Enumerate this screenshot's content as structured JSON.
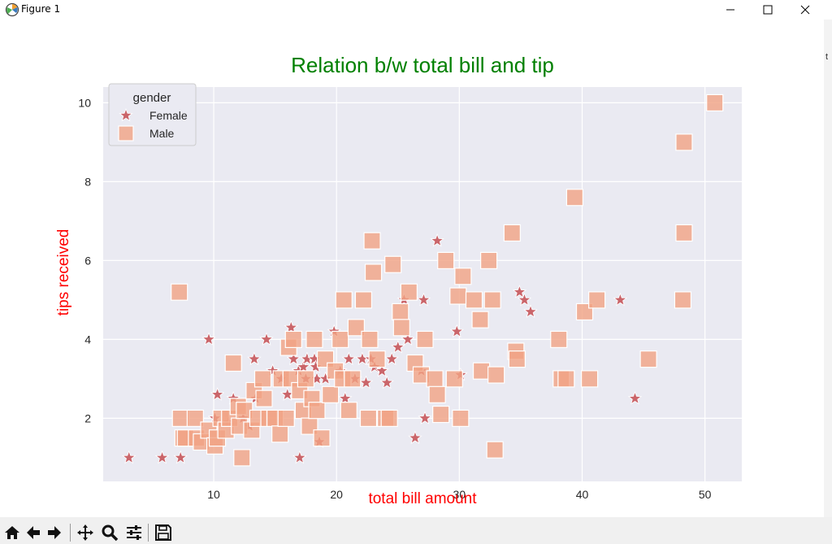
{
  "window": {
    "title": "Figure 1",
    "side_text": "t"
  },
  "chart_data": {
    "type": "scatter",
    "title": "Relation b/w total bill and tip",
    "xlabel": "total bill amount",
    "ylabel": "tips received",
    "xlim": [
      1,
      53
    ],
    "ylim": [
      0.4,
      10.4
    ],
    "xticks": [
      10,
      20,
      30,
      40,
      50
    ],
    "yticks": [
      2,
      4,
      6,
      8,
      10
    ],
    "grid": true,
    "legend": {
      "title": "gender",
      "position": "top-left"
    },
    "colors": {
      "title": "#008000",
      "axis_labels": "#ff0000",
      "plot_bg": "#eaeaf2",
      "grid": "#ffffff",
      "female": "#c44e52",
      "male": "#f1a283"
    },
    "series": [
      {
        "name": "Female",
        "marker": "star",
        "points": [
          [
            3.1,
            1.0
          ],
          [
            5.8,
            1.0
          ],
          [
            7.3,
            1.0
          ],
          [
            9.6,
            4.0
          ],
          [
            10.3,
            2.6
          ],
          [
            10.1,
            2.0
          ],
          [
            11.2,
            1.9
          ],
          [
            11.6,
            2.5
          ],
          [
            12.4,
            2.0
          ],
          [
            12.9,
            1.8
          ],
          [
            13.3,
            3.5
          ],
          [
            13.4,
            2.5
          ],
          [
            14.3,
            4.0
          ],
          [
            14.8,
            3.2
          ],
          [
            15.5,
            3.0
          ],
          [
            16.0,
            2.6
          ],
          [
            16.3,
            4.3
          ],
          [
            16.5,
            3.5
          ],
          [
            16.9,
            3.2
          ],
          [
            17.3,
            3.3
          ],
          [
            17.0,
            1.0
          ],
          [
            17.6,
            3.5
          ],
          [
            17.5,
            3.0
          ],
          [
            18.2,
            3.5
          ],
          [
            18.3,
            3.3
          ],
          [
            18.6,
            1.4
          ],
          [
            18.4,
            3.0
          ],
          [
            19.1,
            3.0
          ],
          [
            19.8,
            4.2
          ],
          [
            20.3,
            3.2
          ],
          [
            20.7,
            2.5
          ],
          [
            21.0,
            3.5
          ],
          [
            21.5,
            3.0
          ],
          [
            22.1,
            3.5
          ],
          [
            22.4,
            2.9
          ],
          [
            22.8,
            3.5
          ],
          [
            23.1,
            3.3
          ],
          [
            23.7,
            3.2
          ],
          [
            24.1,
            2.9
          ],
          [
            24.5,
            3.5
          ],
          [
            25.0,
            3.8
          ],
          [
            25.5,
            5.0
          ],
          [
            25.8,
            4.0
          ],
          [
            26.4,
            1.5
          ],
          [
            26.9,
            3.2
          ],
          [
            27.1,
            5.0
          ],
          [
            27.2,
            2.0
          ],
          [
            28.2,
            6.5
          ],
          [
            29.8,
            4.2
          ],
          [
            30.1,
            3.1
          ],
          [
            34.9,
            5.2
          ],
          [
            35.3,
            5.0
          ],
          [
            35.8,
            4.7
          ],
          [
            43.1,
            5.0
          ],
          [
            44.3,
            2.5
          ]
        ]
      },
      {
        "name": "Male",
        "marker": "square",
        "points": [
          [
            7.2,
            5.2
          ],
          [
            7.3,
            2.0
          ],
          [
            7.5,
            1.5
          ],
          [
            7.7,
            1.5
          ],
          [
            8.5,
            2.0
          ],
          [
            8.6,
            1.5
          ],
          [
            9.0,
            1.4
          ],
          [
            9.6,
            1.7
          ],
          [
            10.1,
            1.3
          ],
          [
            10.3,
            1.5
          ],
          [
            10.6,
            2.0
          ],
          [
            11.0,
            1.7
          ],
          [
            11.3,
            2.0
          ],
          [
            11.6,
            3.4
          ],
          [
            12.0,
            2.3
          ],
          [
            12.1,
            1.8
          ],
          [
            12.3,
            1.0
          ],
          [
            12.5,
            2.2
          ],
          [
            13.1,
            1.7
          ],
          [
            13.3,
            2.7
          ],
          [
            13.6,
            2.0
          ],
          [
            14.0,
            3.0
          ],
          [
            14.1,
            2.5
          ],
          [
            14.5,
            2.0
          ],
          [
            15.0,
            2.0
          ],
          [
            15.4,
            1.6
          ],
          [
            15.5,
            3.0
          ],
          [
            15.9,
            2.0
          ],
          [
            16.1,
            3.8
          ],
          [
            16.3,
            3.0
          ],
          [
            16.5,
            4.0
          ],
          [
            17.0,
            2.7
          ],
          [
            17.3,
            2.2
          ],
          [
            17.5,
            3.0
          ],
          [
            17.8,
            1.8
          ],
          [
            18.0,
            2.5
          ],
          [
            18.2,
            4.0
          ],
          [
            18.4,
            2.2
          ],
          [
            18.8,
            1.5
          ],
          [
            19.1,
            3.5
          ],
          [
            19.5,
            2.6
          ],
          [
            19.9,
            3.2
          ],
          [
            20.3,
            4.0
          ],
          [
            20.5,
            3.0
          ],
          [
            20.6,
            5.0
          ],
          [
            21.0,
            2.2
          ],
          [
            21.3,
            3.0
          ],
          [
            21.6,
            4.3
          ],
          [
            22.2,
            5.0
          ],
          [
            22.6,
            2.0
          ],
          [
            22.7,
            4.0
          ],
          [
            22.9,
            6.5
          ],
          [
            23.0,
            5.7
          ],
          [
            23.3,
            3.5
          ],
          [
            24.0,
            2.0
          ],
          [
            24.3,
            2.0
          ],
          [
            24.6,
            5.9
          ],
          [
            25.2,
            4.7
          ],
          [
            25.3,
            4.3
          ],
          [
            25.9,
            5.2
          ],
          [
            26.4,
            3.4
          ],
          [
            26.9,
            3.1
          ],
          [
            27.2,
            4.0
          ],
          [
            28.0,
            3.0
          ],
          [
            28.2,
            2.6
          ],
          [
            28.5,
            2.1
          ],
          [
            28.9,
            6.0
          ],
          [
            29.6,
            3.0
          ],
          [
            29.9,
            5.1
          ],
          [
            30.1,
            2.0
          ],
          [
            30.3,
            5.6
          ],
          [
            31.2,
            5.0
          ],
          [
            31.7,
            4.5
          ],
          [
            31.8,
            3.2
          ],
          [
            32.4,
            6.0
          ],
          [
            32.7,
            5.0
          ],
          [
            32.9,
            1.2
          ],
          [
            33.0,
            3.1
          ],
          [
            34.3,
            6.7
          ],
          [
            34.6,
            3.7
          ],
          [
            34.7,
            3.5
          ],
          [
            38.1,
            4.0
          ],
          [
            38.3,
            3.0
          ],
          [
            38.7,
            3.0
          ],
          [
            39.4,
            7.6
          ],
          [
            40.2,
            4.7
          ],
          [
            40.6,
            3.0
          ],
          [
            41.2,
            5.0
          ],
          [
            45.4,
            3.5
          ],
          [
            48.2,
            5.0
          ],
          [
            48.3,
            9.0
          ],
          [
            48.3,
            6.7
          ],
          [
            50.8,
            10.0
          ]
        ]
      }
    ]
  }
}
